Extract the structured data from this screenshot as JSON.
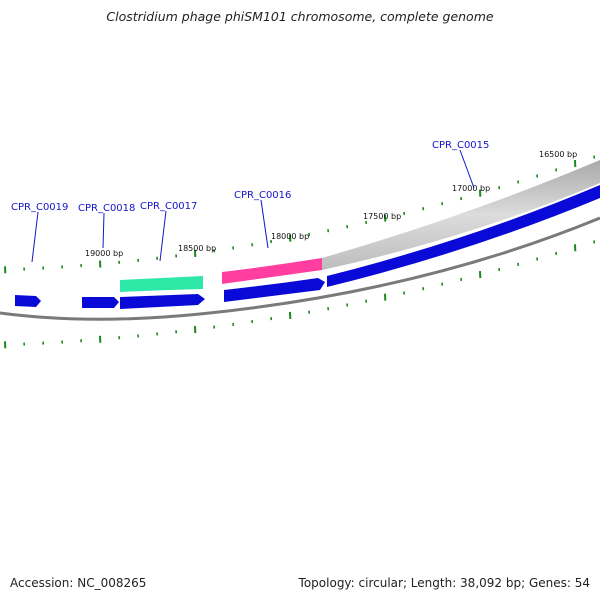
{
  "title": "Clostridium phage phiSM101 chromosome, complete genome",
  "footer": {
    "accession": "Accession: NC_008265",
    "topology": "Topology: circular; Length: 38,092 bp; Genes: 54"
  },
  "colors": {
    "backbone": "#7a7a7a",
    "gene_forward": "#0a0ad8",
    "highlight_pink": "#ff3ea0",
    "highlight_teal": "#2ee8a8",
    "highlight_gray": "#bdbdbd",
    "tick": "#1a8a1a",
    "label": "#1414c8"
  },
  "bp_labels": [
    "16500 bp",
    "17000 bp",
    "17500 bp",
    "18000 bp",
    "18500 bp",
    "19000 bp"
  ],
  "gene_labels": [
    "CPR_C0015",
    "CPR_C0016",
    "CPR_C0017",
    "CPR_C0018",
    "CPR_C0019"
  ]
}
